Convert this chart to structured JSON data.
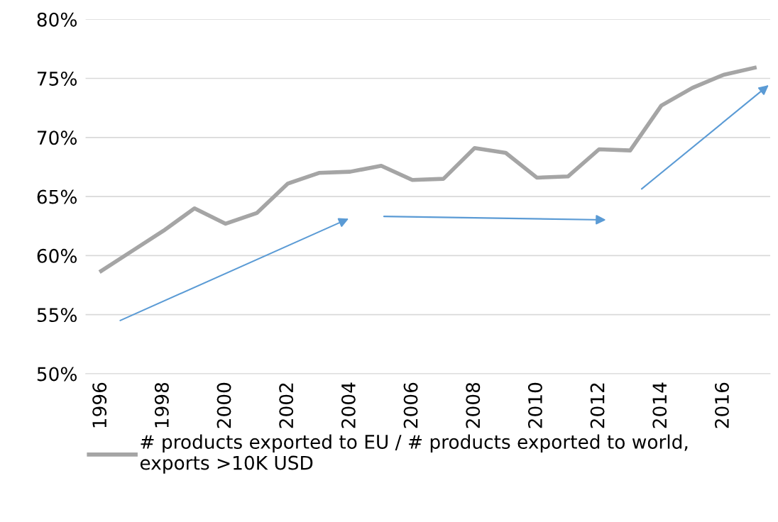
{
  "chart_data": {
    "type": "line",
    "categories": [
      "1996",
      null,
      "1998",
      null,
      "2000",
      null,
      "2002",
      null,
      "2004",
      null,
      "2006",
      null,
      "2008",
      null,
      "2010",
      null,
      "2012",
      null,
      "2014",
      null,
      "2016",
      null
    ],
    "series": [
      {
        "name": "# products exported to EU / # products exported to world, exports >10K USD",
        "color": "#a5a5a5",
        "values": [
          58.7,
          60.4,
          62.1,
          64.0,
          62.7,
          63.6,
          66.1,
          67.0,
          67.1,
          67.6,
          66.4,
          66.5,
          69.1,
          68.7,
          66.6,
          66.7,
          69.0,
          68.9,
          72.7,
          74.2,
          75.3,
          75.9
        ]
      }
    ],
    "ylim": [
      50,
      80
    ],
    "yticks": [
      {
        "value": 50,
        "label": "50%"
      },
      {
        "value": 55,
        "label": "55%"
      },
      {
        "value": 60,
        "label": "60%"
      },
      {
        "value": 65,
        "label": "65%"
      },
      {
        "value": 70,
        "label": "70%"
      },
      {
        "value": 75,
        "label": "75%"
      },
      {
        "value": 80,
        "label": "80%"
      }
    ],
    "grid": "y",
    "legend": "bottom",
    "marker": "none",
    "line_style": "solid"
  }
}
